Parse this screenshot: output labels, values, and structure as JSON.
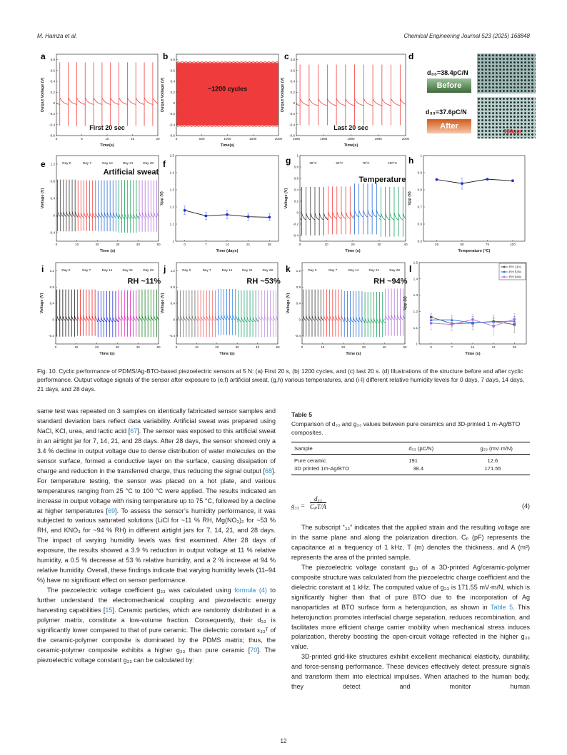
{
  "header": {
    "authors": "M. Hamza et al.",
    "journal": "Chemical Engineering Journal 523 (2025) 168848"
  },
  "figure": {
    "panel_letters": [
      "a",
      "b",
      "c",
      "d",
      "e",
      "f",
      "g",
      "h",
      "i",
      "j",
      "k",
      "l"
    ],
    "panel_d": {
      "d33_before": "d₃₃=38.4pC/N",
      "before": "Before",
      "d33_after": "d₃₃=37.6pC/N",
      "after": "After",
      "scale_bar": "100μm"
    },
    "caption": "Fig. 10. Cyclic performance of PDMS/Ag-BTO-based piezoelectric sensors at 5 N: (a) First 20 s, (b) 1200 cycles, and (c) last 20 s. (d) Illustrations of the structure before and after cyclic performance. Output voltage signals of the sensor after exposure to (e,f) artificial sweat, (g,h) various temperatures, and (i-l) different relative humidity levels for 0 days, 7 days, 14 days, 21 days, and 28 days."
  },
  "chart_data": [
    {
      "id": "a",
      "type": "line",
      "xlabel": "Time(s)",
      "ylabel": "Output Voltage (V)",
      "xlim": [
        0,
        20
      ],
      "ylim": [
        -0.6,
        0.9
      ],
      "xticks": [
        0,
        5,
        10,
        15,
        20
      ],
      "yticks": [
        -0.6,
        -0.4,
        -0.2,
        0.0,
        0.2,
        0.4,
        0.6,
        0.8
      ],
      "annotation": "First 20 sec",
      "segments": [
        {
          "label": "",
          "color": "#f0403c",
          "x0": 0,
          "x1": 20,
          "count": 12,
          "peak": 0.75,
          "trough": -0.42,
          "baseline": 0.0
        }
      ]
    },
    {
      "id": "b",
      "type": "area",
      "xlabel": "Time(s)",
      "ylabel": "Output Voltage (V)",
      "xlim": [
        0,
        2000
      ],
      "ylim": [
        -0.6,
        0.9
      ],
      "xticks": [
        0,
        500,
        1000,
        1500,
        2000
      ],
      "yticks": [
        -0.6,
        -0.4,
        -0.2,
        0.0,
        0.2,
        0.4,
        0.6,
        0.8
      ],
      "annotation": "~1200 cycles",
      "band": {
        "x0": 0,
        "x1": 2000,
        "high": 0.74,
        "low": -0.41,
        "color": "#ef3b3b"
      }
    },
    {
      "id": "c",
      "type": "line",
      "xlabel": "Time(s)",
      "ylabel": "Output Voltage (V)",
      "xlim": [
        1980,
        2000
      ],
      "ylim": [
        -0.6,
        0.9
      ],
      "xticks": [
        1980,
        1985,
        1990,
        1995,
        2000
      ],
      "yticks": [
        -0.6,
        -0.4,
        -0.2,
        0.0,
        0.2,
        0.4,
        0.6,
        0.8
      ],
      "annotation": "Last 20 sec",
      "segments": [
        {
          "label": "",
          "color": "#f0403c",
          "x0": 1980,
          "x1": 2000,
          "count": 12,
          "peak": 0.71,
          "trough": -0.41,
          "baseline": -0.02
        }
      ]
    },
    {
      "id": "e",
      "type": "line",
      "xlabel": "Time (s)",
      "ylabel": "Voltage (V)",
      "xlim": [
        0,
        50
      ],
      "ylim": [
        -0.6,
        1.4
      ],
      "xticks": [
        0,
        10,
        20,
        30,
        40,
        50
      ],
      "yticks": [
        -0.4,
        0.0,
        0.4,
        0.8,
        1.2
      ],
      "annotation": "Artificial sweat",
      "segments": [
        {
          "label": "Day 0",
          "color": "#3a3a3a",
          "x0": 0,
          "x1": 10,
          "count": 7,
          "peak": 0.84,
          "trough": -0.37,
          "baseline": 0
        },
        {
          "label": "Day 7",
          "color": "#f04040",
          "x0": 10,
          "x1": 20,
          "count": 7,
          "peak": 0.82,
          "trough": -0.36,
          "baseline": -0.02
        },
        {
          "label": "Day 14",
          "color": "#2a6fd6",
          "x0": 20,
          "x1": 30,
          "count": 7,
          "peak": 0.82,
          "trough": -0.37,
          "baseline": -0.02
        },
        {
          "label": "Day 21",
          "color": "#1aa05a",
          "x0": 30,
          "x1": 40,
          "count": 7,
          "peak": 0.83,
          "trough": -0.4,
          "baseline": -0.05
        },
        {
          "label": "Day 28",
          "color": "#b070e0",
          "x0": 40,
          "x1": 50,
          "count": 7,
          "peak": 0.82,
          "trough": -0.38,
          "baseline": -0.02
        }
      ]
    },
    {
      "id": "f",
      "type": "line",
      "xlabel": "Time (days)",
      "ylabel": "Vpp (V)",
      "xlim": [
        -3,
        31
      ],
      "ylim": [
        1.0,
        1.5
      ],
      "xticks": [
        0,
        7,
        14,
        21,
        28
      ],
      "yticks": [
        1.0,
        1.1,
        1.2,
        1.3,
        1.4,
        1.5
      ],
      "series": [
        {
          "name": "Vpp",
          "color": "#1a1a1a",
          "marker": "#2030e0",
          "shape": "circle",
          "x": [
            0,
            7,
            14,
            21,
            28
          ],
          "y": [
            1.18,
            1.148,
            1.155,
            1.143,
            1.14
          ],
          "err": [
            0.025,
            0.022,
            0.025,
            0.02,
            0.02
          ]
        }
      ]
    },
    {
      "id": "g",
      "type": "line",
      "xlabel": "Time (s)",
      "ylabel": "Voltage (V)",
      "xlim": [
        0,
        40
      ],
      "ylim": [
        -0.5,
        1.0
      ],
      "xticks": [
        0,
        10,
        20,
        30,
        40
      ],
      "yticks": [
        -0.4,
        -0.2,
        0.0,
        0.2,
        0.4,
        0.6,
        0.8,
        1.0
      ],
      "annotation": "Temperature",
      "segments": [
        {
          "label": "25°C",
          "color": "#3a3a3a",
          "x0": 0,
          "x1": 10,
          "count": 6,
          "peak": 0.45,
          "trough": -0.4,
          "baseline": -0.1
        },
        {
          "label": "50°C",
          "color": "#f04040",
          "x0": 10,
          "x1": 20,
          "count": 6,
          "peak": 0.46,
          "trough": -0.38,
          "baseline": -0.08
        },
        {
          "label": "75°C",
          "color": "#2a6fd6",
          "x0": 20,
          "x1": 30,
          "count": 6,
          "peak": 0.51,
          "trough": -0.38,
          "baseline": -0.05
        },
        {
          "label": "100°C",
          "color": "#1aa05a",
          "x0": 30,
          "x1": 40,
          "count": 6,
          "peak": 0.45,
          "trough": -0.42,
          "baseline": -0.1
        }
      ]
    },
    {
      "id": "h",
      "type": "line",
      "xlabel": "Temperature (°C)",
      "ylabel": "Vpp (V)",
      "xlim": [
        12,
        112
      ],
      "ylim": [
        0.5,
        1.0
      ],
      "xticks": [
        25,
        50,
        75,
        100
      ],
      "yticks": [
        0.5,
        0.6,
        0.7,
        0.8,
        0.9,
        1.0
      ],
      "series": [
        {
          "name": "Vpp",
          "color": "#1a1a1a",
          "marker": "#2030e0",
          "shape": "circle",
          "x": [
            25,
            50,
            75,
            100
          ],
          "y": [
            0.86,
            0.837,
            0.862,
            0.853
          ],
          "err": [
            0.005,
            0.033,
            0.005,
            0.006
          ]
        }
      ]
    },
    {
      "id": "i",
      "type": "line",
      "xlabel": "Time (s)",
      "ylabel": "Voltage (V)",
      "xlim": [
        0,
        50
      ],
      "ylim": [
        -0.6,
        1.4
      ],
      "xticks": [
        0,
        10,
        20,
        30,
        40,
        50
      ],
      "yticks": [
        -0.4,
        0.0,
        0.4,
        0.8,
        1.2
      ],
      "annotation": "RH ~11%",
      "segments": [
        {
          "label": "Day 0",
          "color": "#111111",
          "x0": 0,
          "x1": 10,
          "count": 7,
          "peak": 0.74,
          "trough": -0.42,
          "baseline": 0
        },
        {
          "label": "Day 7",
          "color": "#f02020",
          "x0": 10,
          "x1": 20,
          "count": 7,
          "peak": 0.74,
          "trough": -0.4,
          "baseline": 0
        },
        {
          "label": "Day 14",
          "color": "#2030d0",
          "x0": 20,
          "x1": 30,
          "count": 7,
          "peak": 0.7,
          "trough": -0.43,
          "baseline": -0.03
        },
        {
          "label": "Day 21",
          "color": "#e020c0",
          "x0": 30,
          "x1": 40,
          "count": 7,
          "peak": 0.72,
          "trough": -0.42,
          "baseline": 0
        },
        {
          "label": "Day 28",
          "color": "#128020",
          "x0": 40,
          "x1": 50,
          "count": 7,
          "peak": 0.74,
          "trough": -0.43,
          "baseline": 0
        }
      ]
    },
    {
      "id": "j",
      "type": "line",
      "xlabel": "Time (s)",
      "ylabel": "Voltage (V)",
      "xlim": [
        0,
        50
      ],
      "ylim": [
        -0.6,
        1.4
      ],
      "xticks": [
        0,
        10,
        20,
        30,
        40,
        50
      ],
      "yticks": [
        -0.4,
        0.0,
        0.4,
        0.8,
        1.2
      ],
      "annotation": "RH ~53%",
      "segments": [
        {
          "label": "Day 0",
          "color": "#6a6a6a",
          "x0": 0,
          "x1": 10,
          "count": 7,
          "peak": 0.72,
          "trough": -0.43,
          "baseline": 0
        },
        {
          "label": "Day 7",
          "color": "#f06060",
          "x0": 10,
          "x1": 20,
          "count": 7,
          "peak": 0.72,
          "trough": -0.43,
          "baseline": 0
        },
        {
          "label": "Day 14",
          "color": "#2a7ae0",
          "x0": 20,
          "x1": 30,
          "count": 7,
          "peak": 0.75,
          "trough": -0.38,
          "baseline": 0.02
        },
        {
          "label": "Day 21",
          "color": "#22a070",
          "x0": 30,
          "x1": 40,
          "count": 7,
          "peak": 0.72,
          "trough": -0.43,
          "baseline": -0.03
        },
        {
          "label": "Day 28",
          "color": "#c090e0",
          "x0": 40,
          "x1": 50,
          "count": 7,
          "peak": 0.72,
          "trough": -0.43,
          "baseline": 0
        }
      ]
    },
    {
      "id": "k",
      "type": "line",
      "xlabel": "Time (s)",
      "ylabel": "Voltage (V)",
      "xlim": [
        0,
        50
      ],
      "ylim": [
        -0.6,
        1.4
      ],
      "xticks": [
        0,
        10,
        20,
        30,
        40,
        50
      ],
      "yticks": [
        -0.4,
        0.0,
        0.4,
        0.8,
        1.2
      ],
      "annotation": "RH ~94%",
      "segments": [
        {
          "label": "Day 0",
          "color": "#3a3a3a",
          "x0": 0,
          "x1": 10,
          "count": 7,
          "peak": 0.74,
          "trough": -0.42,
          "baseline": 0
        },
        {
          "label": "Day 7",
          "color": "#f04040",
          "x0": 10,
          "x1": 20,
          "count": 7,
          "peak": 0.74,
          "trough": -0.42,
          "baseline": 0
        },
        {
          "label": "Day 14",
          "color": "#2a6fd6",
          "x0": 20,
          "x1": 30,
          "count": 7,
          "peak": 0.7,
          "trough": -0.43,
          "baseline": -0.03
        },
        {
          "label": "Day 21",
          "color": "#1aa05a",
          "x0": 30,
          "x1": 40,
          "count": 7,
          "peak": 0.68,
          "trough": -0.43,
          "baseline": -0.06
        },
        {
          "label": "Day 28",
          "color": "#b070e0",
          "x0": 40,
          "x1": 50,
          "count": 7,
          "peak": 0.76,
          "trough": -0.4,
          "baseline": 0.02
        }
      ]
    },
    {
      "id": "l",
      "type": "line",
      "xlabel": "Time (s)",
      "ylabel": "Vpp (V)",
      "xlim": [
        -4,
        32
      ],
      "ylim": [
        1.0,
        1.5
      ],
      "xticks": [
        0,
        7,
        14,
        21,
        28
      ],
      "yticks": [
        1.0,
        1.1,
        1.2,
        1.3,
        1.4,
        1.5
      ],
      "legend": "top-right",
      "series": [
        {
          "name": "RH 11%",
          "color": "#555555",
          "marker": "#555555",
          "shape": "square",
          "x": [
            0,
            7,
            14,
            21,
            28
          ],
          "y": [
            1.165,
            1.125,
            1.128,
            1.138,
            1.12
          ],
          "err": [
            0.02,
            0.02,
            0.02,
            0.02,
            0.05
          ]
        },
        {
          "name": "RH 53%",
          "color": "#2070e0",
          "marker": "#2070e0",
          "shape": "triangle",
          "x": [
            0,
            7,
            14,
            21,
            28
          ],
          "y": [
            1.148,
            1.148,
            1.13,
            1.138,
            1.14
          ],
          "err": [
            0.02,
            0.025,
            0.04,
            0.04,
            0.03
          ]
        },
        {
          "name": "RH 94%",
          "color": "#b070e0",
          "marker": "#b070e0",
          "shape": "circle",
          "x": [
            0,
            7,
            14,
            21,
            28
          ],
          "y": [
            1.128,
            1.12,
            1.15,
            1.11,
            1.152
          ],
          "err": [
            0.04,
            0.04,
            0.03,
            0.055,
            0.035
          ]
        }
      ]
    }
  ],
  "left_column": [
    {
      "indent": false,
      "parts": [
        {
          "t": "same test was repeated on 3 samples on identically fabricated sensor samples and standard deviation bars reflect data variability. Artificial sweat was prepared using NaCl, KCl, urea, and lactic acid ["
        },
        {
          "t": "67",
          "link": true
        },
        {
          "t": "]. The sensor was exposed to this artificial sweat in an airtight jar for 7, 14, 21, and 28 days. After 28 days, the sensor showed only a 3.4 % decline in output voltage due to dense distribution of water molecules on the sensor surface, formed a conductive layer on the surface, causing dissipation of charge and reduction in the transferred charge, thus reducing the signal output ["
        },
        {
          "t": "68",
          "link": true
        },
        {
          "t": "]. For temperature testing, the sensor was placed on a hot plate, and various temperatures ranging from 25 °C to 100 °C were applied. The results indicated an increase in output voltage with rising temperature up to 75 °C, followed by a decline at higher temperatures ["
        },
        {
          "t": "69",
          "link": true
        },
        {
          "t": "]. To assess the sensor’s humidity performance, it was subjected to various saturated solutions (LiCl for ~11 % RH, Mg(NO₃)₂ for ~53 % RH, and KNO₃ for ~94 % RH) in different airtight jars for 7, 14, 21, and 28 days. The impact of varying humidity levels was first examined. After 28 days of exposure, the results showed a 3.9 % reduction in output voltage at 11 % relative humidity, a 0.5 % decrease at 53 % relative humidity, and a 2 % increase at 94 % relative humidity. Overall, these findings indicate that varying humidity levels (11–94 %) have no significant effect on sensor performance."
        }
      ]
    },
    {
      "indent": true,
      "parts": [
        {
          "t": "The piezoelectric voltage coefficient g₃₃ was calculated using "
        },
        {
          "t": "formula (4)",
          "link": true
        },
        {
          "t": " to further understand the electromechanical coupling and piezoelectric energy harvesting capabilities ["
        },
        {
          "t": "15",
          "link": true
        },
        {
          "t": "]. Ceramic particles, which are randomly distributed in a polymer matrix, constitute a low-volume fraction. Consequently, their d₃₃ is significantly lower compared to that of pure ceramic. The dielectric constant ε₃₃ᵀ of the ceramic-polymer composite is dominated by the PDMS matrix; thus, the ceramic-polymer composite exhibits a higher g₃₃ than pure ceramic ["
        },
        {
          "t": "70",
          "link": true
        },
        {
          "t": "]. The piezoelectric voltage constant g₃₃ can be calculated by:"
        }
      ]
    }
  ],
  "table": {
    "title": "Table 5",
    "caption": "Comparison of d₃₃ and g₃₃ values between pure ceramics and 3D-printed 1 m-Ag/BTO composites.",
    "headers": [
      "Sample",
      "d₃₃ (pC/N)",
      "g₃₃ (mV·m/N)"
    ],
    "rows": [
      [
        "Pure ceramic",
        "191",
        "12.6"
      ],
      [
        "3D printed 1m-Ag/BTO",
        "38.4",
        "171.55"
      ]
    ]
  },
  "equation": {
    "lhs": "g₃₃ =",
    "numerator": "d₃₃",
    "denominator": "CₚT/A",
    "number": "(4)"
  },
  "right_column": [
    {
      "indent": true,
      "parts": [
        {
          "t": "The subscript “₃₃” indicates that the applied strain and the resulting voltage are in the same plane and along the polarization direction. Cₚ (pF) represents the capacitance at a frequency of 1 kHz, T (m) denotes the thickness, and A (m²) represents the area of the printed sample."
        }
      ]
    },
    {
      "indent": true,
      "parts": [
        {
          "t": "The piezoelectric voltage constant g₃₃ of a 3D-printed Ag/ceramic-polymer composite structure was calculated from the piezoelectric charge coefficient and the dielectric constant at 1 kHz. The computed value of g₃₃ is 171.55 mV·m/N, which is significantly higher than that of pure BTO due to the incorporation of Ag nanoparticles at BTO surface form a heterojunction, as shown in "
        },
        {
          "t": "Table 5",
          "link": true
        },
        {
          "t": ". This heterojunction promotes interfacial charge separation, reduces recombination, and facilitates more efficient charge carrier mobility when mechanical stress induces polarization, thereby boosting the open-circuit voltage reflected in the higher g₃₃ value."
        }
      ]
    },
    {
      "indent": true,
      "last": true,
      "parts": [
        {
          "t": "3D-printed grid-like structures exhibit excellent mechanical elasticity, durability, and force-sensing performance. These devices effectively detect pressure signals and transform them into electrical impulses. When attached to the human body, they detect and monitor human"
        }
      ]
    }
  ],
  "page_number": "12"
}
